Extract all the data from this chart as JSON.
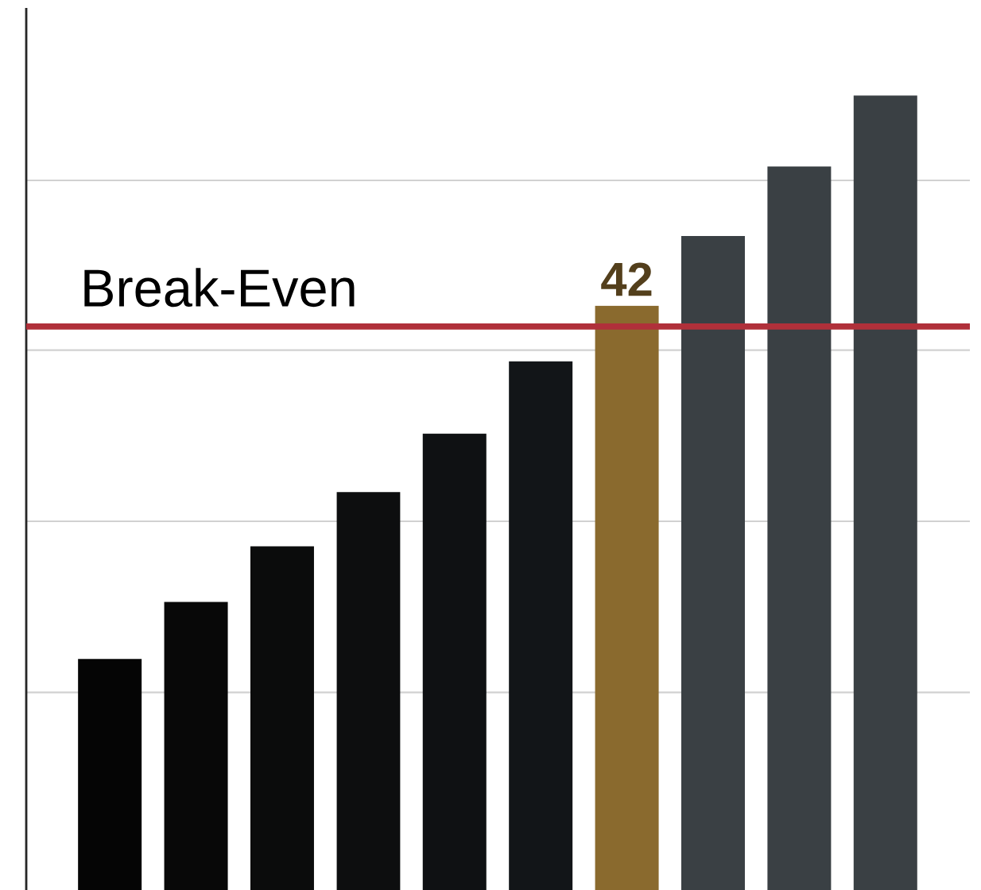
{
  "chart_data": {
    "type": "bar",
    "categories": [
      null,
      null,
      null,
      null,
      null,
      null,
      null,
      null,
      null,
      null
    ],
    "values": [
      16.6,
      20.7,
      24.7,
      28.6,
      32.8,
      38.0,
      42,
      47.0,
      52.0,
      57.1
    ],
    "colors": [
      "#050505",
      "#080808",
      "#0b0c0c",
      "#0d0e0f",
      "#0f1113",
      "#121518",
      "#8a6a2e",
      "#3a4044",
      "#3a4044",
      "#3a4044"
    ],
    "value_labels": [
      null,
      null,
      null,
      null,
      null,
      null,
      "42",
      null,
      null,
      null
    ],
    "ref_lines": [
      {
        "axis": "y",
        "value": 40.5,
        "label": "Break-Even",
        "color": "#b0303a"
      }
    ],
    "ylim": [
      0,
      63.4
    ],
    "yticks": [
      {
        "value": 14.2,
        "label": null
      },
      {
        "value": 26.5,
        "label": null
      },
      {
        "value": 38.8,
        "label": null
      },
      {
        "value": 51.0,
        "label": null
      }
    ],
    "grid": "y"
  }
}
